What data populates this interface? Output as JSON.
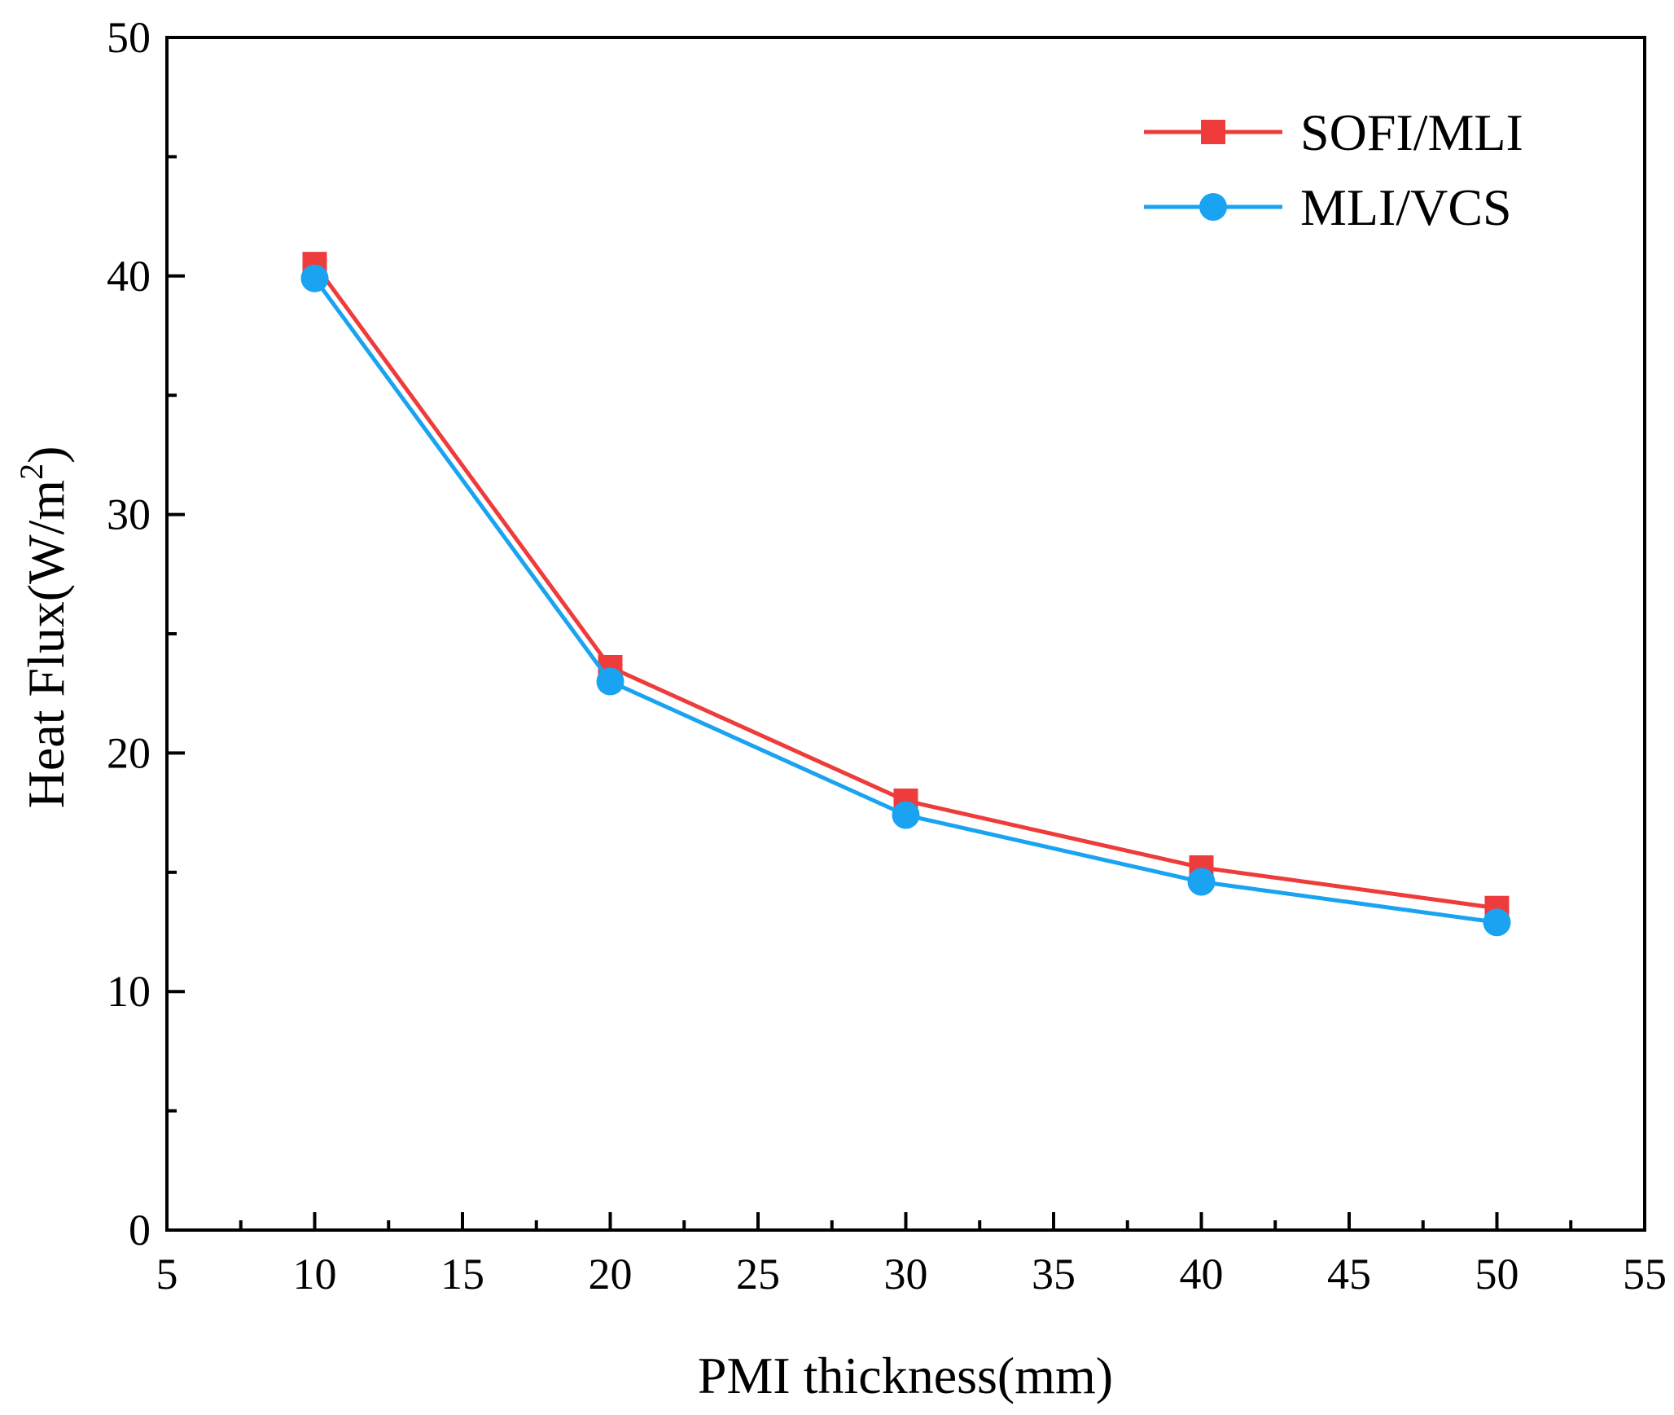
{
  "chart_data": {
    "type": "line",
    "title": "",
    "xlabel": "PMI thickness(mm)",
    "ylabel": "Heat Flux(W/m",
    "ylabel_superscript": "2",
    "ylabel_close": ")",
    "xlim": [
      5,
      55
    ],
    "ylim": [
      0,
      50
    ],
    "xticks": [
      "5",
      "10",
      "15",
      "20",
      "25",
      "30",
      "35",
      "40",
      "45",
      "50",
      "55"
    ],
    "yticks": [
      "0",
      "10",
      "20",
      "30",
      "40",
      "50"
    ],
    "grid": false,
    "legend_position": "top-right",
    "x": [
      10,
      20,
      30,
      40,
      50
    ],
    "series": [
      {
        "name": "SOFI/MLI",
        "marker": "square",
        "color": "#ee3b3b",
        "values": [
          40.5,
          23.6,
          18.0,
          15.2,
          13.5
        ]
      },
      {
        "name": "MLI/VCS",
        "marker": "circle",
        "color": "#1aa3f0",
        "values": [
          39.9,
          23.0,
          17.4,
          14.6,
          12.9
        ]
      }
    ]
  }
}
